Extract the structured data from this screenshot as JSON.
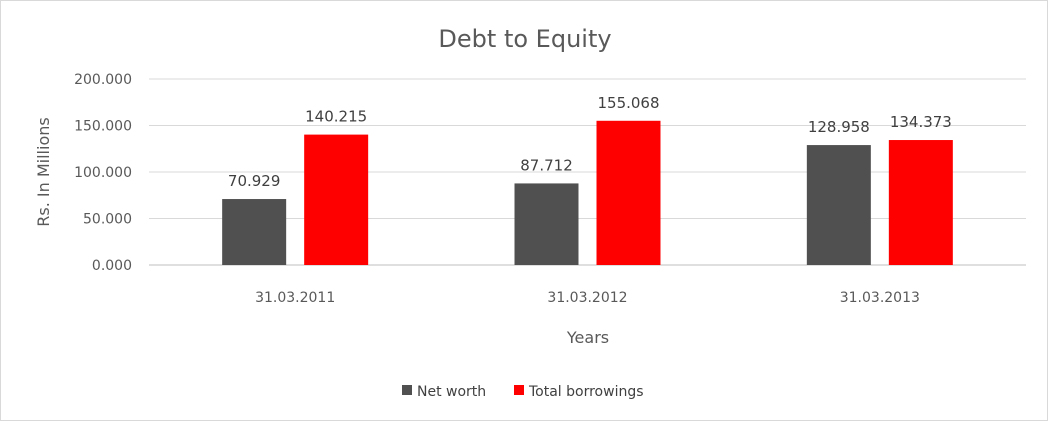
{
  "chart_data": {
    "type": "bar",
    "title": "Debt to Equity",
    "xlabel": "Years",
    "ylabel": "Rs. In Millions",
    "categories": [
      "31.03.2011",
      "31.03.2012",
      "31.03.2013"
    ],
    "series": [
      {
        "name": "Net worth",
        "values": [
          70.929,
          87.712,
          128.958
        ],
        "labels": [
          "70.929",
          "87.712",
          "128.958"
        ],
        "color": "#505050"
      },
      {
        "name": "Total borrowings",
        "values": [
          140.215,
          155.068,
          134.373
        ],
        "labels": [
          "140.215",
          "155.068",
          "134.373"
        ],
        "color": "#ff0000"
      }
    ],
    "ylim": [
      0,
      200
    ],
    "yticks": [
      "0.000",
      "50.000",
      "100.000",
      "150.000",
      "200.000"
    ],
    "grid": true,
    "legend": "bottom-center"
  }
}
